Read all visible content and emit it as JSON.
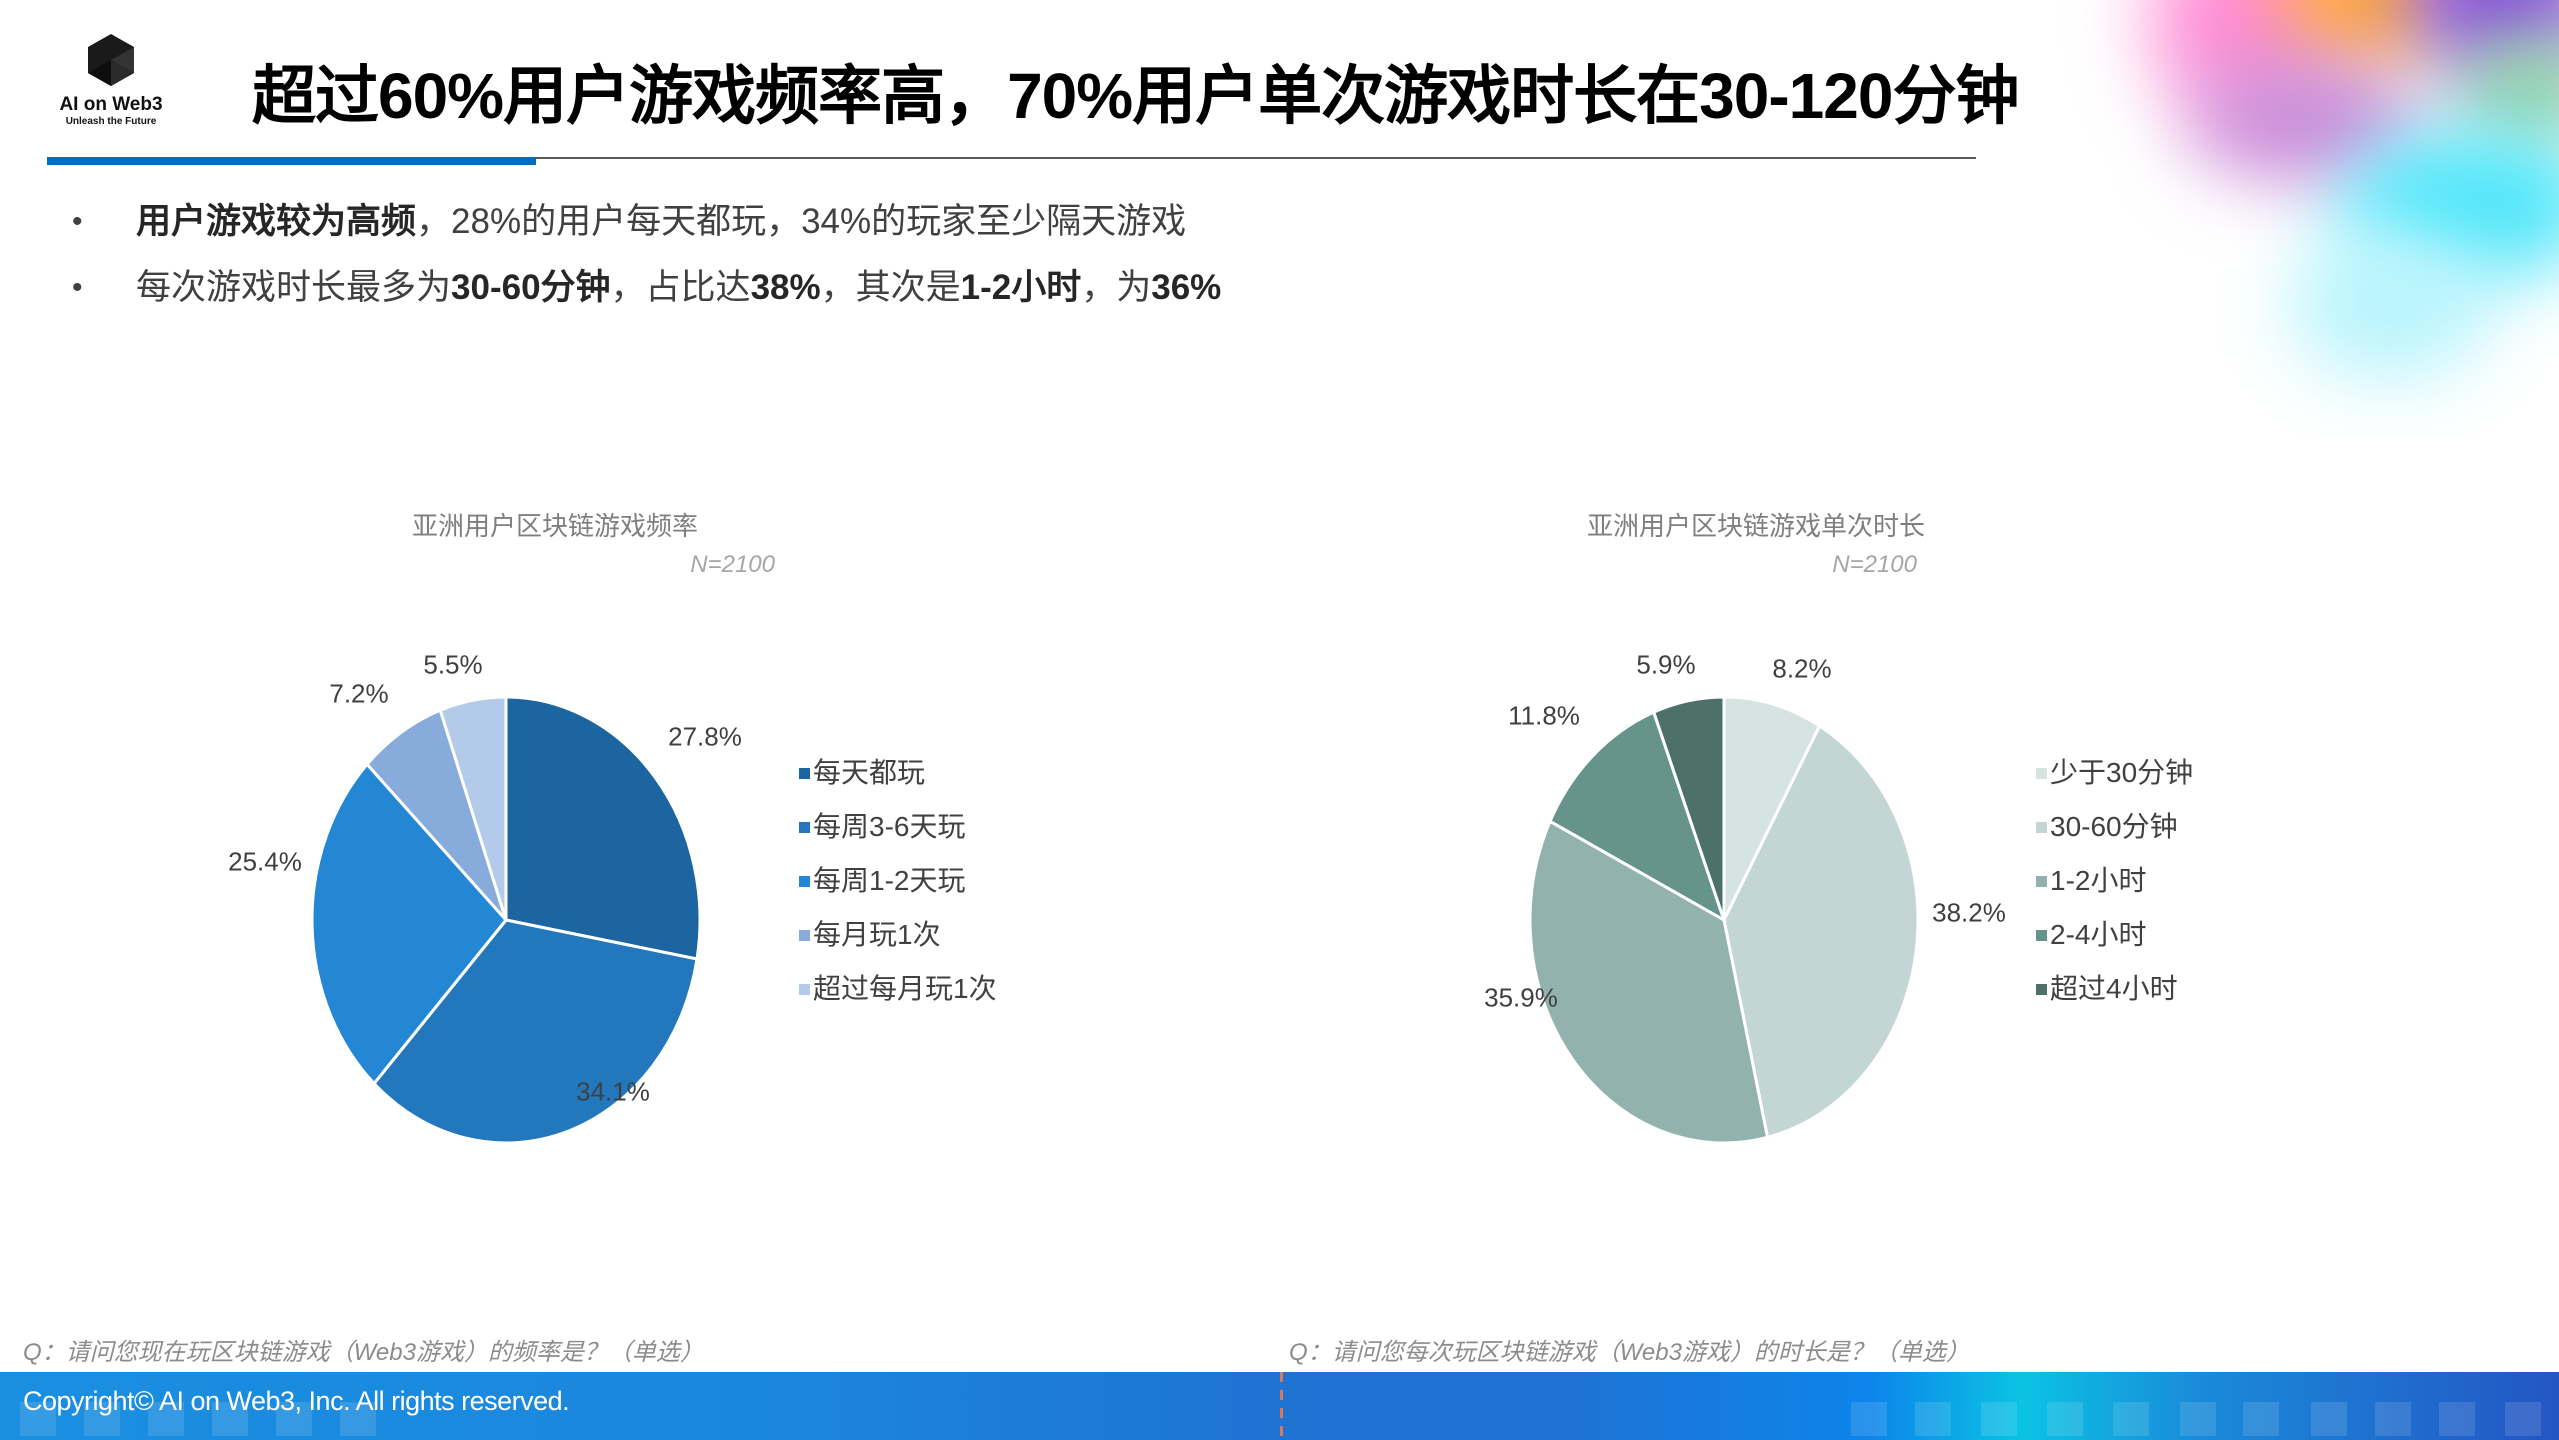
{
  "logo": {
    "name": "AI on Web3",
    "tagline": "Unleash the Future",
    "icon": "hexagon-logo-icon"
  },
  "header": {
    "title": "超过60%用户游戏频率高，70%用户单次游戏时长在30-120分钟",
    "accent_color": "#006EBE"
  },
  "bullets": [
    {
      "bold_lead": "用户游戏较为高频",
      "rest": "，28%的用户每天都玩，34%的玩家至少隔天游戏"
    },
    {
      "parts": [
        "每次游戏时长最多为",
        "30-60分钟",
        "，占比达",
        "38%",
        "，其次是",
        "1-2小时",
        "，为",
        "36%"
      ]
    }
  ],
  "bullet_symbol": "•",
  "chart_data": [
    {
      "type": "pie",
      "title": "亚洲用户区块链游戏频率",
      "subtitle": "N=2100",
      "categories": [
        "每天都玩",
        "每周3-6天玩",
        "每周1-2天玩",
        "每月玩1次",
        "超过每月玩1次"
      ],
      "values": [
        27.8,
        34.1,
        25.4,
        7.2,
        5.5
      ],
      "labels": [
        "27.8%",
        "34.1%",
        "25.4%",
        "7.2%",
        "5.5%"
      ],
      "colors": [
        "#1D65A0",
        "#2277BD",
        "#2387D3",
        "#87ABDB",
        "#B3CBE9"
      ],
      "legend_position": "right",
      "start_angle": "12 o'clock, clockwise"
    },
    {
      "type": "pie",
      "title": "亚洲用户区块链游戏单次时长",
      "subtitle": "N=2100",
      "categories": [
        "少于30分钟",
        "30-60分钟",
        "1-2小时",
        "2-4小时",
        "超过4小时"
      ],
      "values": [
        8.2,
        38.2,
        35.9,
        11.8,
        5.9
      ],
      "labels": [
        "8.2%",
        "38.2%",
        "35.9%",
        "11.8%",
        "5.9%"
      ],
      "colors": [
        "#D5E3E1",
        "#C3D6D4",
        "#92B3AD",
        "#66938A",
        "#4D7068"
      ],
      "legend_position": "right",
      "start_angle": "12 o'clock, clockwise"
    }
  ],
  "questions": [
    "Q：请问您现在玩区块链游戏（Web3游戏）的频率是？（单选）",
    "Q：请问您每次玩区块链游戏（Web3游戏）的时长是？（单选）"
  ],
  "footer": {
    "copyright": "Copyright© AI on Web3, Inc. All rights reserved."
  }
}
